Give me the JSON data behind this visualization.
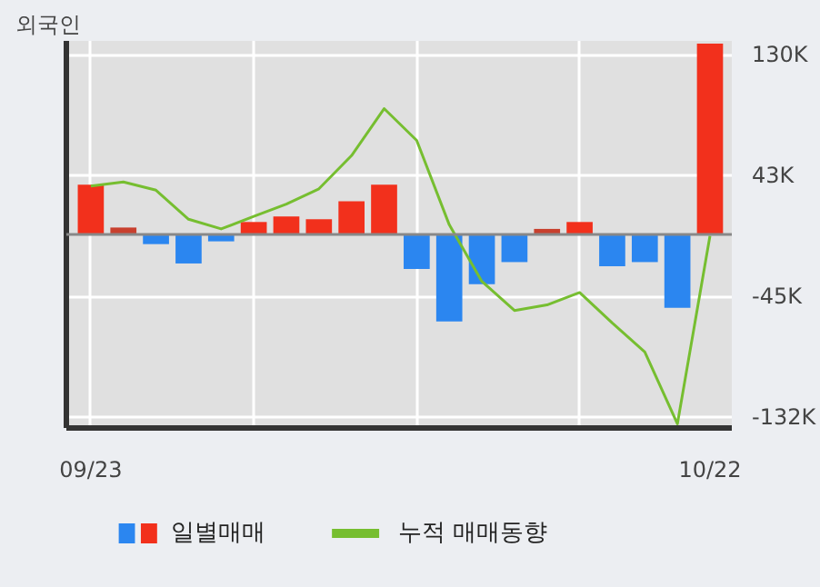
{
  "chart_data": {
    "type": "bar",
    "title": "외국인",
    "categories": [
      "09/23",
      null,
      null,
      null,
      null,
      null,
      null,
      null,
      null,
      null,
      null,
      null,
      null,
      null,
      null,
      null,
      null,
      null,
      null,
      "10/22"
    ],
    "series": [
      {
        "name": "일별매매",
        "colors": [
          "#f2301c",
          "#c8402e",
          "#2b86f0",
          "#2b86f0",
          "#2b86f0",
          "#f2301c",
          "#f2301c",
          "#f2301c",
          "#f2301c",
          "#f2301c",
          "#2b86f0",
          "#2b86f0",
          "#2b86f0",
          "#2b86f0",
          "#c8402e",
          "#f2301c",
          "#2b86f0",
          "#2b86f0",
          "#2b86f0",
          "#f2301c"
        ],
        "values": [
          36,
          5,
          -7,
          -21,
          -5,
          9,
          13,
          11,
          24,
          36,
          -25,
          -63,
          -36,
          -20,
          4,
          9,
          -23,
          -20,
          -53,
          138
        ]
      },
      {
        "name": "누적 매매동향",
        "type": "line",
        "color": "#76be30",
        "values": [
          35,
          38,
          32,
          11,
          4,
          13,
          22,
          33,
          57,
          91,
          68,
          7,
          -34,
          -55,
          -51,
          -42,
          -64,
          -85,
          -137,
          -1
        ]
      }
    ],
    "ylim": [
      -140,
      140
    ],
    "yticks": [
      {
        "value": 130,
        "label": "130K"
      },
      {
        "value": 43,
        "label": "43K"
      },
      {
        "value": -45,
        "label": "-45K"
      },
      {
        "value": -132,
        "label": "-132K"
      }
    ],
    "ref_lines": [
      {
        "axis": "y",
        "value": 0,
        "color": "#888888"
      }
    ],
    "grid": true,
    "legend": "bottom"
  }
}
